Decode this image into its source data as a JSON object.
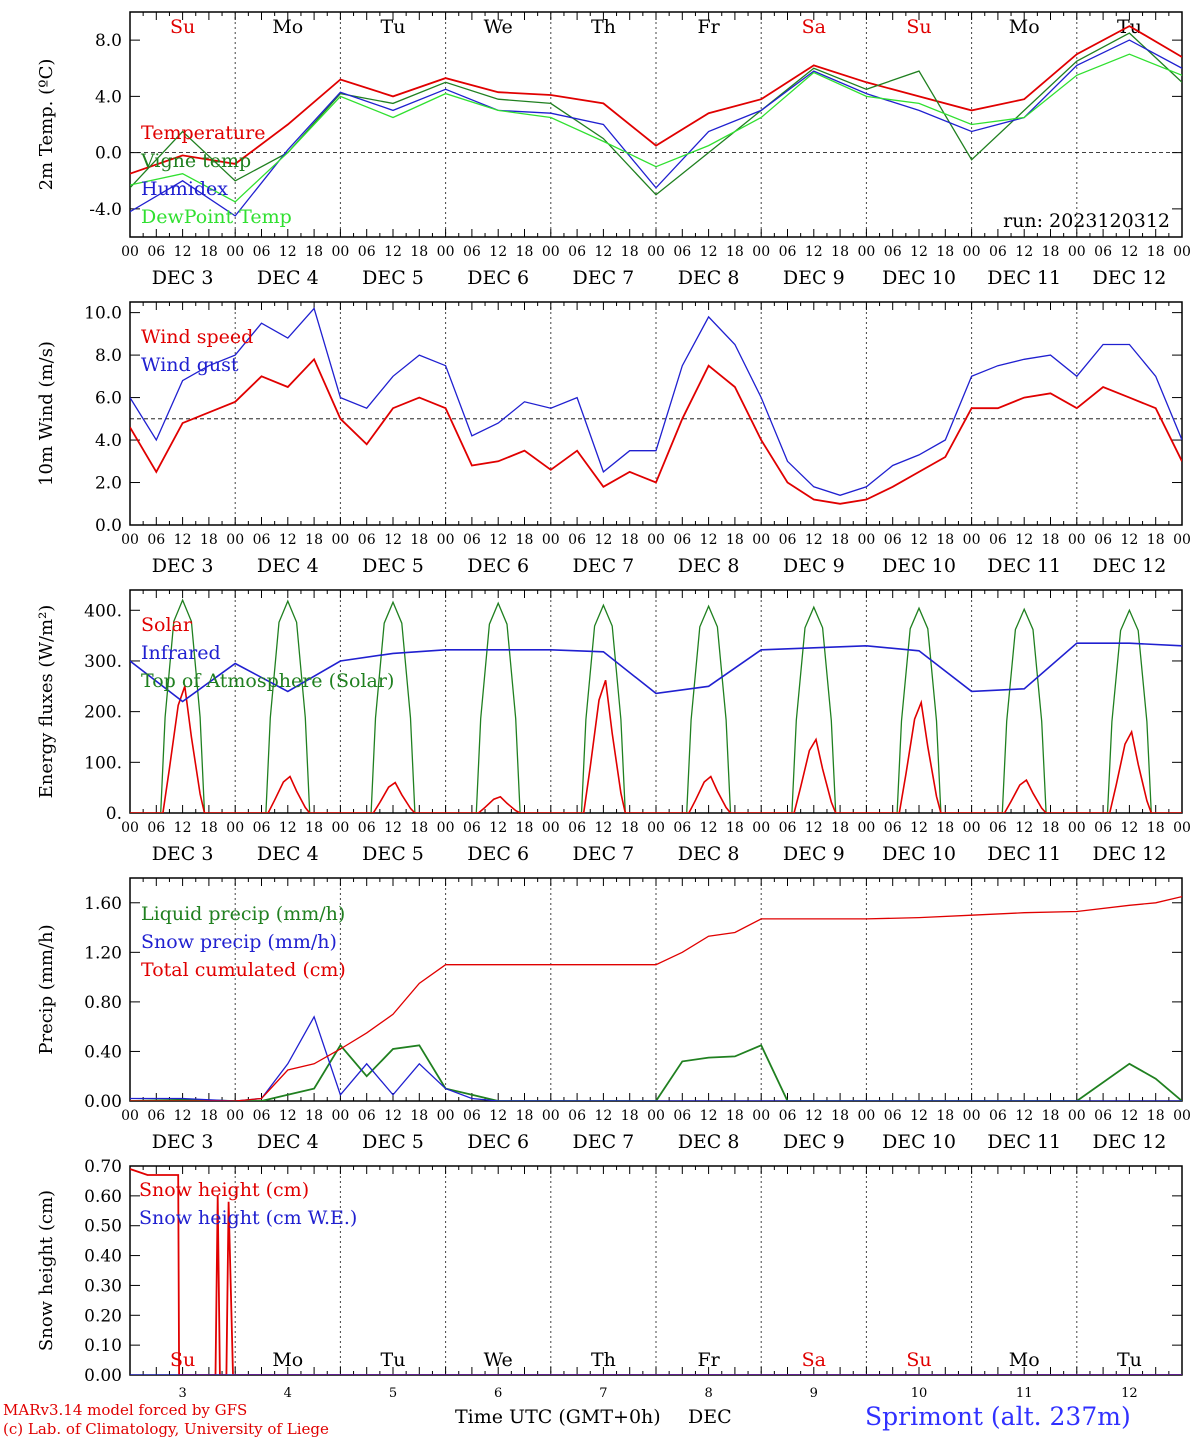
{
  "chart_data": [
    {
      "type": "line",
      "ylabel": "2m Temp. (ºC)",
      "ylim": [
        -6.0,
        10.0
      ],
      "yticks": [
        "-4.0",
        "0.0",
        "4.0",
        "8.0"
      ],
      "ytick_values": [
        -4,
        0,
        4,
        8
      ],
      "dashed_reference": 0,
      "annotation": "run: 2023120312",
      "day_names": [
        "Su",
        "Mo",
        "Tu",
        "We",
        "Th",
        "Fr",
        "Sa",
        "Su",
        "Mo",
        "Tu"
      ],
      "day_name_colors": [
        "#e00000",
        "#000000",
        "#000000",
        "#000000",
        "#000000",
        "#000000",
        "#e00000",
        "#e00000",
        "#000000",
        "#000000"
      ],
      "x_hour_ticks": [
        "00",
        "06",
        "12",
        "18"
      ],
      "x_date_labels": [
        "DEC 3",
        "DEC 4",
        "DEC 5",
        "DEC 6",
        "DEC 7",
        "DEC 8",
        "DEC 9",
        "DEC 10",
        "DEC 11",
        "DEC 12"
      ],
      "x_hours": [
        0,
        12,
        24,
        36,
        48,
        60,
        72,
        84,
        96,
        108,
        120,
        132,
        144,
        156,
        168,
        180,
        192,
        204,
        216,
        228,
        240
      ],
      "series": [
        {
          "name": "Temperature",
          "color": "#e00000",
          "values": [
            -1.5,
            -0.2,
            -0.8,
            2.0,
            5.2,
            4.0,
            5.3,
            4.3,
            4.1,
            3.5,
            0.5,
            2.8,
            3.8,
            6.2,
            5.0,
            4.0,
            3.0,
            3.8,
            7.0,
            9.0,
            6.8
          ]
        },
        {
          "name": "Vigne temp",
          "color": "#208020",
          "values": [
            -2.5,
            1.5,
            -2.0,
            0.0,
            4.2,
            3.5,
            5.0,
            3.8,
            3.5,
            1.0,
            -3.0,
            0.0,
            3.0,
            6.0,
            4.5,
            5.8,
            -0.5,
            3.0,
            6.5,
            8.5,
            5.0
          ]
        },
        {
          "name": "Humidex",
          "color": "#2020d0",
          "values": [
            -4.2,
            -2.0,
            -4.5,
            0.2,
            4.3,
            3.0,
            4.5,
            3.0,
            2.8,
            2.0,
            -2.5,
            1.5,
            3.0,
            5.8,
            4.2,
            3.0,
            1.5,
            2.5,
            6.2,
            8.0,
            6.0
          ]
        },
        {
          "name": "DewPoint Temp",
          "color": "#30e030",
          "values": [
            -2.3,
            -1.5,
            -3.5,
            0.0,
            4.0,
            2.5,
            4.2,
            3.0,
            2.5,
            0.8,
            -1.0,
            0.5,
            2.5,
            5.7,
            4.0,
            3.5,
            2.0,
            2.5,
            5.5,
            7.0,
            5.5
          ]
        }
      ]
    },
    {
      "type": "line",
      "ylabel": "10m Wind (m/s)",
      "ylim": [
        0.0,
        10.5
      ],
      "yticks": [
        "0.0",
        "2.0",
        "4.0",
        "6.0",
        "8.0",
        "10.0"
      ],
      "ytick_values": [
        0,
        2,
        4,
        6,
        8,
        10
      ],
      "dashed_reference": 5,
      "day_names": [],
      "x_hour_ticks": [
        "00",
        "06",
        "12",
        "18"
      ],
      "x_date_labels": [
        "DEC 3",
        "DEC 4",
        "DEC 5",
        "DEC 6",
        "DEC 7",
        "DEC 8",
        "DEC 9",
        "DEC 10",
        "DEC 11",
        "DEC 12"
      ],
      "x_hours": [
        0,
        6,
        12,
        18,
        24,
        30,
        36,
        42,
        48,
        54,
        60,
        66,
        72,
        78,
        84,
        90,
        96,
        102,
        108,
        114,
        120,
        126,
        132,
        138,
        144,
        150,
        156,
        162,
        168,
        174,
        180,
        186,
        192,
        198,
        204,
        210,
        216,
        222,
        228,
        234,
        240
      ],
      "series": [
        {
          "name": "Wind speed",
          "color": "#e00000",
          "values": [
            4.6,
            2.5,
            4.8,
            5.3,
            5.8,
            7.0,
            6.5,
            7.8,
            5.0,
            3.8,
            5.5,
            6.0,
            5.5,
            2.8,
            3.0,
            3.5,
            2.6,
            3.5,
            1.8,
            2.5,
            2.0,
            5.0,
            7.5,
            6.5,
            4.0,
            2.0,
            1.2,
            1.0,
            1.2,
            1.8,
            2.5,
            3.2,
            5.5,
            5.5,
            6.0,
            6.2,
            5.5,
            6.5,
            6.0,
            5.5,
            3.0
          ]
        },
        {
          "name": "Wind gust",
          "color": "#2020d0",
          "values": [
            6.0,
            4.0,
            6.8,
            7.5,
            8.0,
            9.5,
            8.8,
            10.2,
            6.0,
            5.5,
            7.0,
            8.0,
            7.5,
            4.2,
            4.8,
            5.8,
            5.5,
            6.0,
            2.5,
            3.5,
            3.5,
            7.5,
            9.8,
            8.5,
            6.0,
            3.0,
            1.8,
            1.4,
            1.8,
            2.8,
            3.3,
            4.0,
            7.0,
            7.5,
            7.8,
            8.0,
            7.0,
            8.5,
            8.5,
            7.0,
            4.0
          ]
        }
      ]
    },
    {
      "type": "line",
      "ylabel": "Energy fluxes (W/m²)",
      "ylim": [
        0,
        440
      ],
      "yticks": [
        "0.",
        "100.",
        "200.",
        "300.",
        "400."
      ],
      "ytick_values": [
        0,
        100,
        200,
        300,
        400
      ],
      "dashed_reference": null,
      "day_names": [],
      "x_hour_ticks": [
        "00",
        "06",
        "12",
        "18"
      ],
      "x_date_labels": [
        "DEC 3",
        "DEC 4",
        "DEC 5",
        "DEC 6",
        "DEC 7",
        "DEC 8",
        "DEC 9",
        "DEC 10",
        "DEC 11",
        "DEC 12"
      ],
      "daily_peaks": [
        {
          "solar": 250,
          "toa": 420
        },
        {
          "solar": 72,
          "toa": 418
        },
        {
          "solar": 60,
          "toa": 416
        },
        {
          "solar": 32,
          "toa": 414
        },
        {
          "solar": 262,
          "toa": 410
        },
        {
          "solar": 72,
          "toa": 408
        },
        {
          "solar": 145,
          "toa": 406
        },
        {
          "solar": 218,
          "toa": 404
        },
        {
          "solar": 65,
          "toa": 402
        },
        {
          "solar": 160,
          "toa": 400
        }
      ],
      "infrared_hours": [
        0,
        12,
        24,
        36,
        48,
        60,
        72,
        84,
        96,
        108,
        120,
        132,
        144,
        156,
        168,
        180,
        192,
        204,
        216,
        228,
        240
      ],
      "infrared_values": [
        300,
        220,
        295,
        240,
        300,
        315,
        322,
        322,
        322,
        318,
        236,
        250,
        322,
        326,
        330,
        320,
        240,
        245,
        335,
        335,
        330
      ],
      "series": [
        {
          "name": "Solar",
          "color": "#e00000"
        },
        {
          "name": "Infrared",
          "color": "#2020d0"
        },
        {
          "name": "Top of Atmosphere (Solar)",
          "color": "#208020"
        }
      ]
    },
    {
      "type": "line",
      "ylabel": "Precip (mm/h)",
      "ylim": [
        0.0,
        1.8
      ],
      "yticks": [
        "0.00",
        "0.40",
        "0.80",
        "1.20",
        "1.60"
      ],
      "ytick_values": [
        0,
        0.4,
        0.8,
        1.2,
        1.6
      ],
      "dashed_reference": null,
      "day_names": [],
      "x_hour_ticks": [
        "00",
        "06",
        "12",
        "18"
      ],
      "x_date_labels": [
        "DEC 3",
        "DEC 4",
        "DEC 5",
        "DEC 6",
        "DEC 7",
        "DEC 8",
        "DEC 9",
        "DEC 10",
        "DEC 11",
        "DEC 12"
      ],
      "x_hours": [
        0,
        12,
        24,
        30,
        36,
        42,
        48,
        54,
        60,
        66,
        72,
        78,
        84,
        90,
        96,
        108,
        120,
        126,
        132,
        138,
        144,
        150,
        156,
        162,
        168,
        180,
        192,
        204,
        216,
        228,
        234,
        240
      ],
      "series": [
        {
          "name": "Liquid precip (mm/h)",
          "color": "#208020",
          "values": [
            0.0,
            0.01,
            0.0,
            0.0,
            0.05,
            0.1,
            0.45,
            0.2,
            0.42,
            0.45,
            0.1,
            0.05,
            0.0,
            0.0,
            0.0,
            0.0,
            0.0,
            0.32,
            0.35,
            0.36,
            0.45,
            0.0,
            0.0,
            0.0,
            0.0,
            0.0,
            0.0,
            0.0,
            0.0,
            0.3,
            0.18,
            0.0
          ]
        },
        {
          "name": "Snow precip (mm/h)",
          "color": "#2020d0",
          "values": [
            0.02,
            0.02,
            0.0,
            0.02,
            0.3,
            0.68,
            0.05,
            0.3,
            0.05,
            0.3,
            0.1,
            0.02,
            0.0,
            0.0,
            0.0,
            0.0,
            0.0,
            0.0,
            0.0,
            0.0,
            0.0,
            0.0,
            0.0,
            0.0,
            0.0,
            0.0,
            0.0,
            0.0,
            0.0,
            0.0,
            0.0,
            0.0
          ]
        },
        {
          "name": "Total cumulated (cm)",
          "color": "#e00000",
          "values": [
            0.0,
            0.0,
            0.0,
            0.02,
            0.25,
            0.3,
            0.42,
            0.55,
            0.7,
            0.95,
            1.1,
            1.1,
            1.1,
            1.1,
            1.1,
            1.1,
            1.1,
            1.2,
            1.33,
            1.36,
            1.47,
            1.47,
            1.47,
            1.47,
            1.47,
            1.48,
            1.5,
            1.52,
            1.53,
            1.58,
            1.6,
            1.65
          ]
        }
      ]
    },
    {
      "type": "line",
      "ylabel": "Snow height (cm)",
      "ylim": [
        0.0,
        0.7
      ],
      "yticks": [
        "0.00",
        "0.10",
        "0.20",
        "0.30",
        "0.40",
        "0.50",
        "0.60",
        "0.70"
      ],
      "ytick_values": [
        0,
        0.1,
        0.2,
        0.3,
        0.4,
        0.5,
        0.6,
        0.7
      ],
      "dashed_reference": null,
      "day_names": [
        "Su",
        "Mo",
        "Tu",
        "We",
        "Th",
        "Fr",
        "Sa",
        "Su",
        "Mo",
        "Tu"
      ],
      "day_name_colors": [
        "#e00000",
        "#000000",
        "#000000",
        "#000000",
        "#000000",
        "#000000",
        "#e00000",
        "#e00000",
        "#000000",
        "#000000"
      ],
      "x_day_numbers": [
        "3",
        "4",
        "5",
        "6",
        "7",
        "8",
        "9",
        "10",
        "11",
        "12"
      ],
      "x_hours": [
        0,
        2,
        4,
        8,
        11,
        11.2,
        12,
        13,
        19.5,
        20,
        20.5,
        22,
        22.5,
        23.5,
        24.2,
        25,
        240
      ],
      "series": [
        {
          "name": "Snow height (cm)",
          "color": "#e00000",
          "values": [
            0.69,
            0.68,
            0.67,
            0.67,
            0.67,
            0.0,
            0.0,
            0.0,
            0.0,
            0.6,
            0.0,
            0.0,
            0.58,
            0.0,
            0.0,
            0.0,
            0.0
          ]
        },
        {
          "name": "Snow height (cm W.E.)",
          "color": "#2020d0",
          "values": [
            0.0,
            0.0,
            0.0,
            0.0,
            0.0,
            0.0,
            0.0,
            0.0,
            0.0,
            0.0,
            0.0,
            0.0,
            0.0,
            0.0,
            0.0,
            0.0,
            0.0
          ]
        }
      ]
    }
  ],
  "footer": {
    "model_credit": "MARv3.14 model forced by GFS",
    "lab_credit": "(c) Lab. of Climatology, University of Liege",
    "x_axis_title": "Time UTC (GMT+0h)",
    "month_label": "DEC",
    "station": "Sprimont (alt. 237m)"
  }
}
